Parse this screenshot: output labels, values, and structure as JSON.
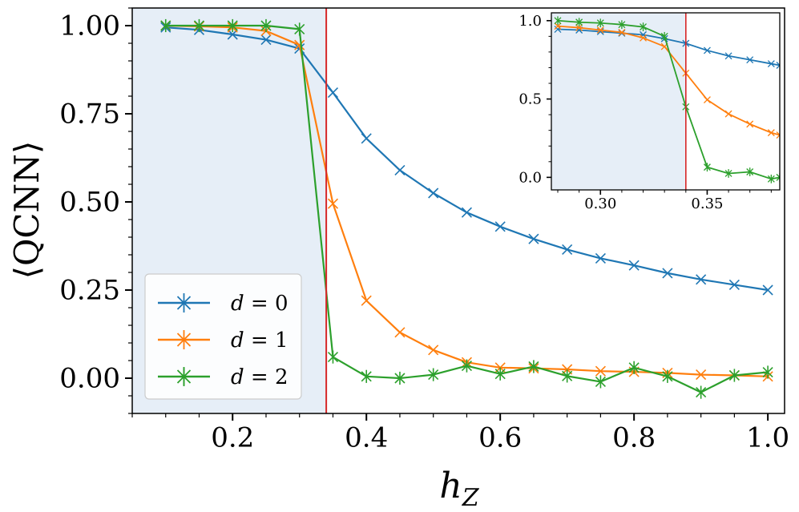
{
  "chart_data": {
    "type": "line",
    "xlabel": "h_Z",
    "ylabel": "⟨QCNN⟩",
    "xlim": [
      0.05,
      1.025
    ],
    "ylim": [
      -0.1,
      1.05
    ],
    "xticks": [
      "0.2",
      "0.4",
      "0.6",
      "0.8",
      "1.0"
    ],
    "yticks": [
      "0.00",
      "0.25",
      "0.50",
      "0.75",
      "1.00"
    ],
    "shaded_region": [
      0.05,
      0.34
    ],
    "critical_line_x": 0.34,
    "legend_position": "lower-left",
    "colors": {
      "d0": "#1f77b4",
      "d1": "#ff7f0e",
      "d2": "#2ca02c",
      "critical": "#d62728",
      "shade": "#e6eef7"
    },
    "series": [
      {
        "name": "d = 0",
        "color": "#1f77b4",
        "x": [
          0.1,
          0.15,
          0.2,
          0.25,
          0.3,
          0.35,
          0.4,
          0.45,
          0.5,
          0.55,
          0.6,
          0.65,
          0.7,
          0.75,
          0.8,
          0.85,
          0.9,
          0.95,
          1.0
        ],
        "y": [
          0.995,
          0.988,
          0.975,
          0.96,
          0.935,
          0.81,
          0.68,
          0.59,
          0.525,
          0.47,
          0.43,
          0.395,
          0.365,
          0.34,
          0.32,
          0.298,
          0.28,
          0.265,
          0.25
        ]
      },
      {
        "name": "d = 1",
        "color": "#ff7f0e",
        "x": [
          0.1,
          0.15,
          0.2,
          0.25,
          0.3,
          0.35,
          0.4,
          0.45,
          0.5,
          0.55,
          0.6,
          0.65,
          0.7,
          0.75,
          0.8,
          0.85,
          0.9,
          0.95,
          1.0
        ],
        "y": [
          1.0,
          0.998,
          0.995,
          0.985,
          0.945,
          0.495,
          0.22,
          0.13,
          0.08,
          0.045,
          0.03,
          0.028,
          0.025,
          0.02,
          0.018,
          0.015,
          0.01,
          0.008,
          0.005
        ]
      },
      {
        "name": "d = 2",
        "color": "#2ca02c",
        "x": [
          0.1,
          0.15,
          0.2,
          0.25,
          0.3,
          0.35,
          0.4,
          0.45,
          0.5,
          0.55,
          0.6,
          0.65,
          0.7,
          0.75,
          0.8,
          0.85,
          0.9,
          0.95,
          1.0
        ],
        "y": [
          1.0,
          1.0,
          1.0,
          1.0,
          0.99,
          0.06,
          0.005,
          0.0,
          0.01,
          0.035,
          0.012,
          0.033,
          0.006,
          -0.01,
          0.03,
          0.005,
          -0.04,
          0.008,
          0.017
        ]
      }
    ],
    "inset": {
      "xlim": [
        0.277,
        0.384
      ],
      "ylim": [
        -0.08,
        1.05
      ],
      "xticks": [
        "0.30",
        "0.35"
      ],
      "yticks": [
        "0.0",
        "0.5",
        "1.0"
      ],
      "shaded_region": [
        0.277,
        0.34
      ],
      "critical_line_x": 0.34,
      "series": [
        {
          "name": "d = 0",
          "color": "#1f77b4",
          "x": [
            0.28,
            0.29,
            0.3,
            0.31,
            0.32,
            0.33,
            0.34,
            0.35,
            0.36,
            0.37,
            0.38,
            0.384
          ],
          "y": [
            0.945,
            0.94,
            0.93,
            0.92,
            0.91,
            0.885,
            0.855,
            0.81,
            0.775,
            0.75,
            0.725,
            0.715
          ]
        },
        {
          "name": "d = 1",
          "color": "#ff7f0e",
          "x": [
            0.28,
            0.29,
            0.3,
            0.31,
            0.32,
            0.33,
            0.34,
            0.35,
            0.36,
            0.37,
            0.38,
            0.384
          ],
          "y": [
            0.965,
            0.955,
            0.94,
            0.925,
            0.89,
            0.835,
            0.665,
            0.495,
            0.405,
            0.34,
            0.285,
            0.27
          ]
        },
        {
          "name": "d = 2",
          "color": "#2ca02c",
          "x": [
            0.28,
            0.29,
            0.3,
            0.31,
            0.32,
            0.33,
            0.34,
            0.35,
            0.36,
            0.37,
            0.38,
            0.384
          ],
          "y": [
            1.0,
            0.99,
            0.985,
            0.975,
            0.96,
            0.9,
            0.45,
            0.065,
            0.025,
            0.035,
            -0.01,
            0.0
          ]
        }
      ]
    }
  }
}
